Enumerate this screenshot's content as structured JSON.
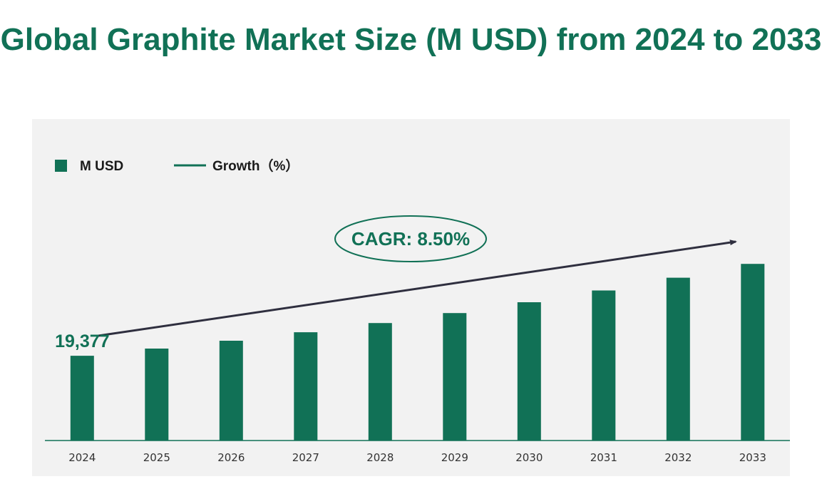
{
  "colors": {
    "accent": "#117156",
    "arrow": "#2f2f3f",
    "panel": "#f2f2f2",
    "axis": "#117156"
  },
  "chart_data": {
    "type": "bar",
    "title": "Global Graphite Market Size (M USD) from 2024 to 2033",
    "categories": [
      "2024",
      "2025",
      "2026",
      "2027",
      "2028",
      "2029",
      "2030",
      "2031",
      "2032",
      "2033"
    ],
    "series": [
      {
        "name": "M USD",
        "values": [
          19377,
          21024,
          22811,
          24750,
          26853,
          29136,
          31613,
          34300,
          37215,
          40378
        ]
      }
    ],
    "legend": [
      "M USD",
      "Growth（%）"
    ],
    "data_labels": [
      {
        "category": "2024",
        "text": "19,377"
      }
    ],
    "annotation": "CAGR:  8.50%",
    "ylim": [
      0,
      44000
    ],
    "grid": false,
    "legend_position": "top-left"
  }
}
